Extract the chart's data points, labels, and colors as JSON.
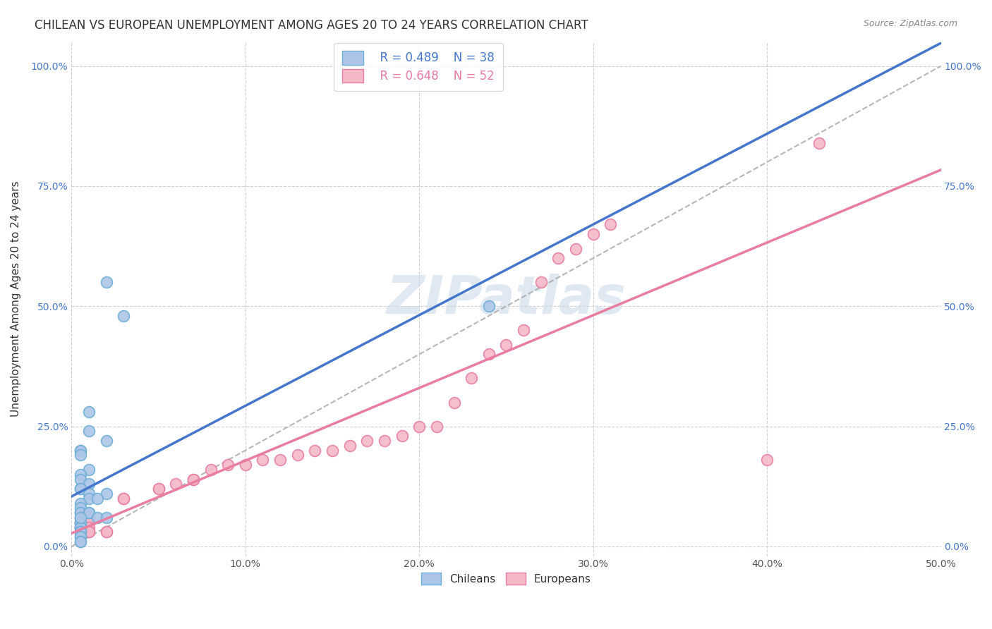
{
  "title": "CHILEAN VS EUROPEAN UNEMPLOYMENT AMONG AGES 20 TO 24 YEARS CORRELATION CHART",
  "source": "Source: ZipAtlas.com",
  "ylabel": "Unemployment Among Ages 20 to 24 years",
  "xlim": [
    0.0,
    0.5
  ],
  "ylim": [
    -0.02,
    1.05
  ],
  "legend_r_chilean": "R = 0.489",
  "legend_n_chilean": "N = 38",
  "legend_r_european": "R = 0.648",
  "legend_n_european": "N = 52",
  "chilean_color": "#adc6e8",
  "chilean_edge": "#6baed6",
  "european_color": "#f4b8c8",
  "european_edge": "#e87da0",
  "trend_chilean_color": "#4477cc",
  "trend_european_color": "#e87da0",
  "trend_dashed_color": "#aaaaaa",
  "background_color": "#ffffff",
  "grid_color": "#cccccc",
  "title_color": "#333333",
  "axis_label_color": "#333333",
  "watermark_text": "ZIPatlas",
  "watermark_color": "#c8d8e8",
  "chileans_x": [
    0.02,
    0.03,
    0.01,
    0.01,
    0.02,
    0.005,
    0.005,
    0.005,
    0.01,
    0.005,
    0.005,
    0.01,
    0.005,
    0.005,
    0.01,
    0.02,
    0.01,
    0.015,
    0.005,
    0.005,
    0.005,
    0.005,
    0.01,
    0.01,
    0.015,
    0.02,
    0.005,
    0.005,
    0.005,
    0.005,
    0.005,
    0.005,
    0.005,
    0.005,
    0.24,
    0.005,
    0.005,
    0.005
  ],
  "chileans_y": [
    0.55,
    0.48,
    0.28,
    0.24,
    0.22,
    0.2,
    0.2,
    0.19,
    0.16,
    0.15,
    0.14,
    0.13,
    0.12,
    0.12,
    0.11,
    0.11,
    0.1,
    0.1,
    0.09,
    0.08,
    0.07,
    0.07,
    0.07,
    0.07,
    0.06,
    0.06,
    0.05,
    0.05,
    0.04,
    0.04,
    0.03,
    0.03,
    0.02,
    0.02,
    0.5,
    0.01,
    0.01,
    0.06
  ],
  "europeans_x": [
    0.005,
    0.005,
    0.005,
    0.01,
    0.005,
    0.005,
    0.01,
    0.005,
    0.005,
    0.01,
    0.005,
    0.005,
    0.005,
    0.005,
    0.01,
    0.005,
    0.01,
    0.02,
    0.02,
    0.03,
    0.03,
    0.05,
    0.05,
    0.06,
    0.07,
    0.07,
    0.08,
    0.09,
    0.1,
    0.11,
    0.12,
    0.13,
    0.14,
    0.15,
    0.16,
    0.17,
    0.18,
    0.19,
    0.2,
    0.21,
    0.22,
    0.23,
    0.24,
    0.25,
    0.26,
    0.27,
    0.28,
    0.29,
    0.3,
    0.31,
    0.4,
    0.43
  ],
  "europeans_y": [
    0.07,
    0.06,
    0.06,
    0.06,
    0.05,
    0.05,
    0.05,
    0.05,
    0.04,
    0.04,
    0.04,
    0.04,
    0.03,
    0.03,
    0.03,
    0.03,
    0.03,
    0.03,
    0.03,
    0.1,
    0.1,
    0.12,
    0.12,
    0.13,
    0.14,
    0.14,
    0.16,
    0.17,
    0.17,
    0.18,
    0.18,
    0.19,
    0.2,
    0.2,
    0.21,
    0.22,
    0.22,
    0.23,
    0.25,
    0.25,
    0.3,
    0.35,
    0.4,
    0.42,
    0.45,
    0.55,
    0.6,
    0.62,
    0.65,
    0.67,
    0.18,
    0.84
  ]
}
